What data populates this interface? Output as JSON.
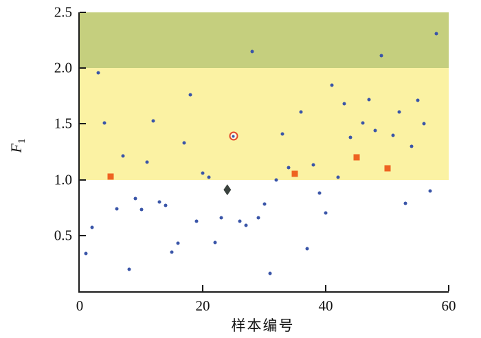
{
  "chart_data": {
    "type": "scatter",
    "title": "",
    "xlabel": "样本编号",
    "ylabel": "F1",
    "ylabel_main": "F",
    "ylabel_sub": "1",
    "xlim": [
      0,
      60
    ],
    "ylim": [
      0,
      2.5
    ],
    "grid": false,
    "legend": "none",
    "x_ticks": [
      {
        "v": 0,
        "label": "0"
      },
      {
        "v": 20,
        "label": "20"
      },
      {
        "v": 40,
        "label": "40"
      },
      {
        "v": 60,
        "label": "60"
      }
    ],
    "y_ticks": [
      {
        "v": 0.5,
        "label": "0.5"
      },
      {
        "v": 1.0,
        "label": "1.0"
      },
      {
        "v": 1.5,
        "label": "1.5"
      },
      {
        "v": 2.0,
        "label": "2.0"
      },
      {
        "v": 2.5,
        "label": "2.5"
      }
    ],
    "bands": [
      {
        "name": "upper-green-zone",
        "from": 2.0,
        "to": 2.5,
        "color": "#c5cf7e"
      },
      {
        "name": "middle-yellow-zone",
        "from": 1.0,
        "to": 2.0,
        "color": "#fbf2a3"
      }
    ],
    "series": [
      {
        "name": "normal-samples",
        "marker": "dot",
        "color": "#3a55a8",
        "points": [
          [
            1,
            0.34
          ],
          [
            2,
            0.57
          ],
          [
            3,
            1.96
          ],
          [
            4,
            1.51
          ],
          [
            6,
            0.74
          ],
          [
            7,
            1.21
          ],
          [
            8,
            0.2
          ],
          [
            9,
            0.83
          ],
          [
            10,
            0.73
          ],
          [
            11,
            1.16
          ],
          [
            12,
            1.53
          ],
          [
            13,
            0.8
          ],
          [
            14,
            0.77
          ],
          [
            15,
            0.35
          ],
          [
            16,
            0.43
          ],
          [
            17,
            1.33
          ],
          [
            18,
            1.76
          ],
          [
            19,
            0.63
          ],
          [
            20,
            1.06
          ],
          [
            21,
            1.02
          ],
          [
            22,
            0.44
          ],
          [
            23,
            0.66
          ],
          [
            26,
            0.63
          ],
          [
            27,
            0.59
          ],
          [
            28,
            2.15
          ],
          [
            29,
            0.66
          ],
          [
            30,
            0.78
          ],
          [
            31,
            0.16
          ],
          [
            32,
            1.0
          ],
          [
            33,
            1.41
          ],
          [
            34,
            1.11
          ],
          [
            36,
            1.61
          ],
          [
            37,
            0.38
          ],
          [
            38,
            1.13
          ],
          [
            39,
            0.88
          ],
          [
            40,
            0.7
          ],
          [
            41,
            1.85
          ],
          [
            42,
            1.02
          ],
          [
            43,
            1.68
          ],
          [
            44,
            1.38
          ],
          [
            46,
            1.51
          ],
          [
            47,
            1.72
          ],
          [
            48,
            1.44
          ],
          [
            49,
            2.11
          ],
          [
            51,
            1.4
          ],
          [
            52,
            1.61
          ],
          [
            53,
            0.79
          ],
          [
            54,
            1.3
          ],
          [
            55,
            1.71
          ],
          [
            56,
            1.5
          ],
          [
            57,
            0.9
          ],
          [
            58,
            2.31
          ]
        ]
      },
      {
        "name": "square-samples",
        "marker": "square",
        "color": "#ee6321",
        "points": [
          [
            5,
            1.03
          ],
          [
            35,
            1.05
          ],
          [
            45,
            1.2
          ],
          [
            50,
            1.1
          ]
        ]
      },
      {
        "name": "diamond-sample",
        "marker": "diamond",
        "color": "#3a423e",
        "points": [
          [
            24,
            0.91
          ]
        ]
      },
      {
        "name": "circled-sample",
        "marker": "circled-dot",
        "color": "#e2492b",
        "dot_color": "#3a55a8",
        "points": [
          [
            25,
            1.39
          ]
        ]
      }
    ]
  }
}
